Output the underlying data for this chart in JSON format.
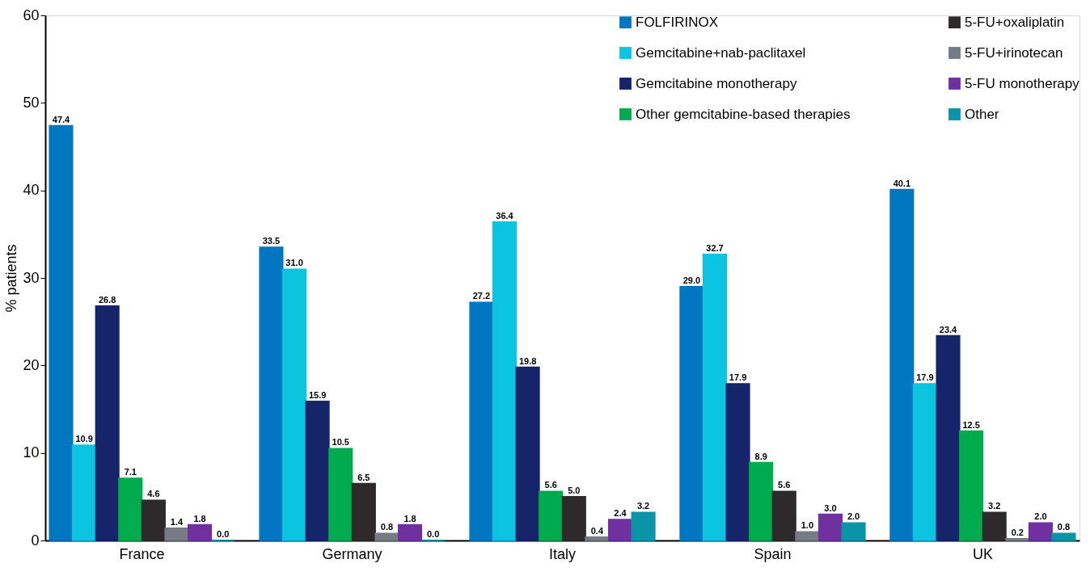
{
  "chart_data": {
    "type": "bar",
    "ylabel": "% patients",
    "categories": [
      "France",
      "Germany",
      "Italy",
      "Spain",
      "UK"
    ],
    "series": [
      {
        "name": "FOLFIRINOX",
        "color": "#0077c0",
        "values": [
          47.4,
          33.5,
          27.2,
          29.0,
          40.1
        ],
        "value_labels": [
          "47.4",
          "33.5",
          "27.2",
          "29.0",
          "40.1"
        ]
      },
      {
        "name": "Gemcitabine+nab-paclitaxel",
        "color": "#0bc5e0",
        "values": [
          10.9,
          31.0,
          36.4,
          32.7,
          17.9
        ],
        "value_labels": [
          "10.9",
          "31.0",
          "36.4",
          "32.7",
          "17.9"
        ]
      },
      {
        "name": "Gemcitabine monotherapy",
        "color": "#16246a",
        "values": [
          26.8,
          15.9,
          19.8,
          17.9,
          23.4
        ],
        "value_labels": [
          "26.8",
          "15.9",
          "19.8",
          "17.9",
          "23.4"
        ]
      },
      {
        "name": "Other gemcitabine-based therapies",
        "color": "#00ab4e",
        "values": [
          7.1,
          10.5,
          5.6,
          8.9,
          12.5
        ],
        "value_labels": [
          "7.1",
          "10.5",
          "5.6",
          "8.9",
          "12.5"
        ]
      },
      {
        "name": "5-FU+oxaliplatin",
        "color": "#2e2a2b",
        "values": [
          4.6,
          6.5,
          5.0,
          5.6,
          3.2
        ],
        "value_labels": [
          "4.6",
          "6.5",
          "5.0",
          "5.6",
          "3.2"
        ]
      },
      {
        "name": "5-FU+irinotecan",
        "color": "#767b84",
        "values": [
          1.4,
          0.8,
          0.4,
          1.0,
          0.2
        ],
        "value_labels": [
          "1.4",
          "0.8",
          "0.4",
          "1.0",
          "0.2"
        ]
      },
      {
        "name": "5-FU monotherapy",
        "color": "#7030a0",
        "values": [
          1.8,
          1.8,
          2.4,
          3.0,
          2.0
        ],
        "value_labels": [
          "1.8",
          "1.8",
          "2.4",
          "3.0",
          "2.0"
        ]
      },
      {
        "name": "Other",
        "color": "#0994a8",
        "values": [
          0.0,
          0.0,
          3.2,
          2.0,
          0.8
        ],
        "value_labels": [
          "0.0",
          "0.0",
          "3.2",
          "2.0",
          "0.8"
        ]
      }
    ],
    "ylim": [
      0,
      60
    ],
    "yticks": [
      0,
      10,
      20,
      30,
      40,
      50,
      60
    ],
    "grid": false,
    "legend": "top right"
  }
}
